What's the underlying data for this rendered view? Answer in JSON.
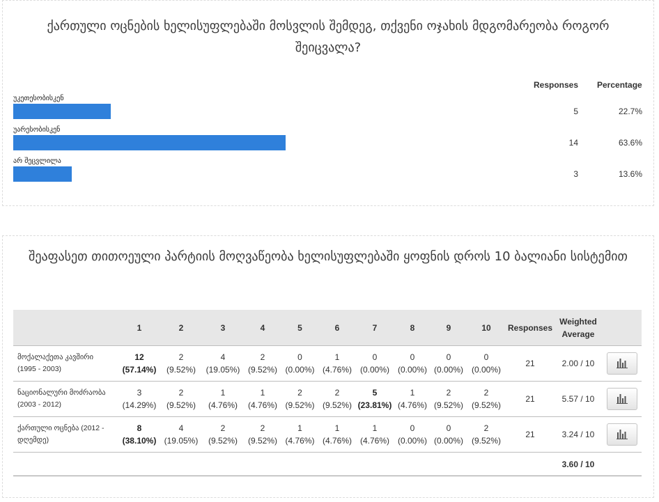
{
  "q1": {
    "title": "ქართული ოცნების ხელისუფლებაში მოსვლის შემდეგ, თქვენი ოჯახის მდგომარეობა როგორ შეიცვალა?",
    "headers": {
      "responses": "Responses",
      "percentage": "Percentage"
    },
    "rows": [
      {
        "label": "უკეთესობისკენ",
        "count": "5",
        "percentage": "22.7%",
        "share": 0.227
      },
      {
        "label": "უარესობისკენ",
        "count": "14",
        "percentage": "63.6%",
        "share": 0.636
      },
      {
        "label": "არ შეცვლილა",
        "count": "3",
        "percentage": "13.6%",
        "share": 0.136
      }
    ],
    "bar_color": "#2f80db"
  },
  "q2": {
    "title": "შეაფასეთ თითოეული პარტიის მოღვაწეობა ხელისუფლებაში ყოფნის დროს 10 ბალიანი სისტემით",
    "headers": {
      "scale": [
        "1",
        "2",
        "3",
        "4",
        "5",
        "6",
        "7",
        "8",
        "9",
        "10"
      ],
      "responses": "Responses",
      "weighted_line1": "Weighted",
      "weighted_line2": "Average"
    },
    "rows": [
      {
        "label_line1": "მოქალაქეთა კავშირი",
        "label_line2": "(1995 - 2003)",
        "cells": [
          {
            "count": "12",
            "pct": "(57.14%)",
            "highlight": true
          },
          {
            "count": "2",
            "pct": "(9.52%)"
          },
          {
            "count": "4",
            "pct": "(19.05%)"
          },
          {
            "count": "2",
            "pct": "(9.52%)"
          },
          {
            "count": "0",
            "pct": "(0.00%)"
          },
          {
            "count": "1",
            "pct": "(4.76%)"
          },
          {
            "count": "0",
            "pct": "(0.00%)"
          },
          {
            "count": "0",
            "pct": "(0.00%)"
          },
          {
            "count": "0",
            "pct": "(0.00%)"
          },
          {
            "count": "0",
            "pct": "(0.00%)"
          }
        ],
        "responses": "21",
        "weighted": "2.00 / 10"
      },
      {
        "label_line1": "ნაციონალური მოძრაობა",
        "label_line2": "(2003 - 2012)",
        "cells": [
          {
            "count": "3",
            "pct": "(14.29%)"
          },
          {
            "count": "2",
            "pct": "(9.52%)"
          },
          {
            "count": "1",
            "pct": "(4.76%)"
          },
          {
            "count": "1",
            "pct": "(4.76%)"
          },
          {
            "count": "2",
            "pct": "(9.52%)"
          },
          {
            "count": "2",
            "pct": "(9.52%)"
          },
          {
            "count": "5",
            "pct": "(23.81%)",
            "highlight": true
          },
          {
            "count": "1",
            "pct": "(4.76%)"
          },
          {
            "count": "2",
            "pct": "(9.52%)"
          },
          {
            "count": "2",
            "pct": "(9.52%)"
          }
        ],
        "responses": "21",
        "weighted": "5.57 / 10"
      },
      {
        "label_line1": "ქართული ოცნება (2012 -",
        "label_line2": "დღემდე)",
        "cells": [
          {
            "count": "8",
            "pct": "(38.10%)",
            "highlight": true
          },
          {
            "count": "4",
            "pct": "(19.05%)"
          },
          {
            "count": "2",
            "pct": "(9.52%)"
          },
          {
            "count": "2",
            "pct": "(9.52%)"
          },
          {
            "count": "1",
            "pct": "(4.76%)"
          },
          {
            "count": "1",
            "pct": "(4.76%)"
          },
          {
            "count": "1",
            "pct": "(4.76%)"
          },
          {
            "count": "0",
            "pct": "(0.00%)"
          },
          {
            "count": "0",
            "pct": "(0.00%)"
          },
          {
            "count": "2",
            "pct": "(9.52%)"
          }
        ],
        "responses": "21",
        "weighted": "3.24 / 10"
      }
    ],
    "overall_weighted": "3.60 / 10",
    "chart_button_icon": "bar-chart-icon"
  }
}
